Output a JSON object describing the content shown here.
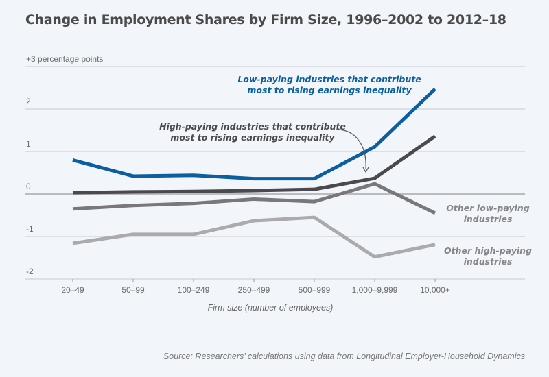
{
  "chart_data": {
    "type": "line",
    "title": "Change in Employment Shares by Firm Size, 1996–2002 to 2012–18",
    "xlabel": "Firm size (number of employees)",
    "ylabel": "percentage points",
    "categories": [
      "20–49",
      "50–99",
      "100–249",
      "250–499",
      "500–999",
      "1,000–9,999",
      "10,000+"
    ],
    "ylim": [
      -2,
      3
    ],
    "yticks": [
      {
        "value": 3,
        "label": "+3 percentage points"
      },
      {
        "value": 2,
        "label": "2"
      },
      {
        "value": 1,
        "label": "1"
      },
      {
        "value": 0,
        "label": "0"
      },
      {
        "value": -1,
        "label": "-1"
      },
      {
        "value": -2,
        "label": "-2"
      }
    ],
    "grid": true,
    "series": [
      {
        "name": "Low-paying industries that contribute most to rising earnings inequality",
        "color": "#0b5fa0",
        "values": [
          0.8,
          0.42,
          0.44,
          0.36,
          0.36,
          1.11,
          2.47
        ],
        "label_lines": [
          "Low-paying industries that contribute",
          "most to rising earnings inequality"
        ]
      },
      {
        "name": "High-paying industries that contribute most to rising earnings inequality",
        "color": "#4a4a4e",
        "values": [
          0.03,
          0.05,
          0.06,
          0.08,
          0.11,
          0.37,
          1.36
        ],
        "label_lines": [
          "High-paying industries that contribute",
          "most to rising earnings inequality"
        ]
      },
      {
        "name": "Other low-paying industries",
        "color": "#78787c",
        "values": [
          -0.35,
          -0.27,
          -0.22,
          -0.12,
          -0.18,
          0.24,
          -0.45
        ],
        "label_lines": [
          "Other low-paying",
          "industries"
        ]
      },
      {
        "name": "Other high-paying industries",
        "color": "#ababaf",
        "values": [
          -1.16,
          -0.95,
          -0.95,
          -0.63,
          -0.55,
          -1.48,
          -1.19
        ],
        "label_lines": [
          "Other high-paying",
          "industries"
        ]
      }
    ],
    "source": "Source: Researchers’ calculations using data from Longitudinal Employer-Household Dynamics"
  }
}
